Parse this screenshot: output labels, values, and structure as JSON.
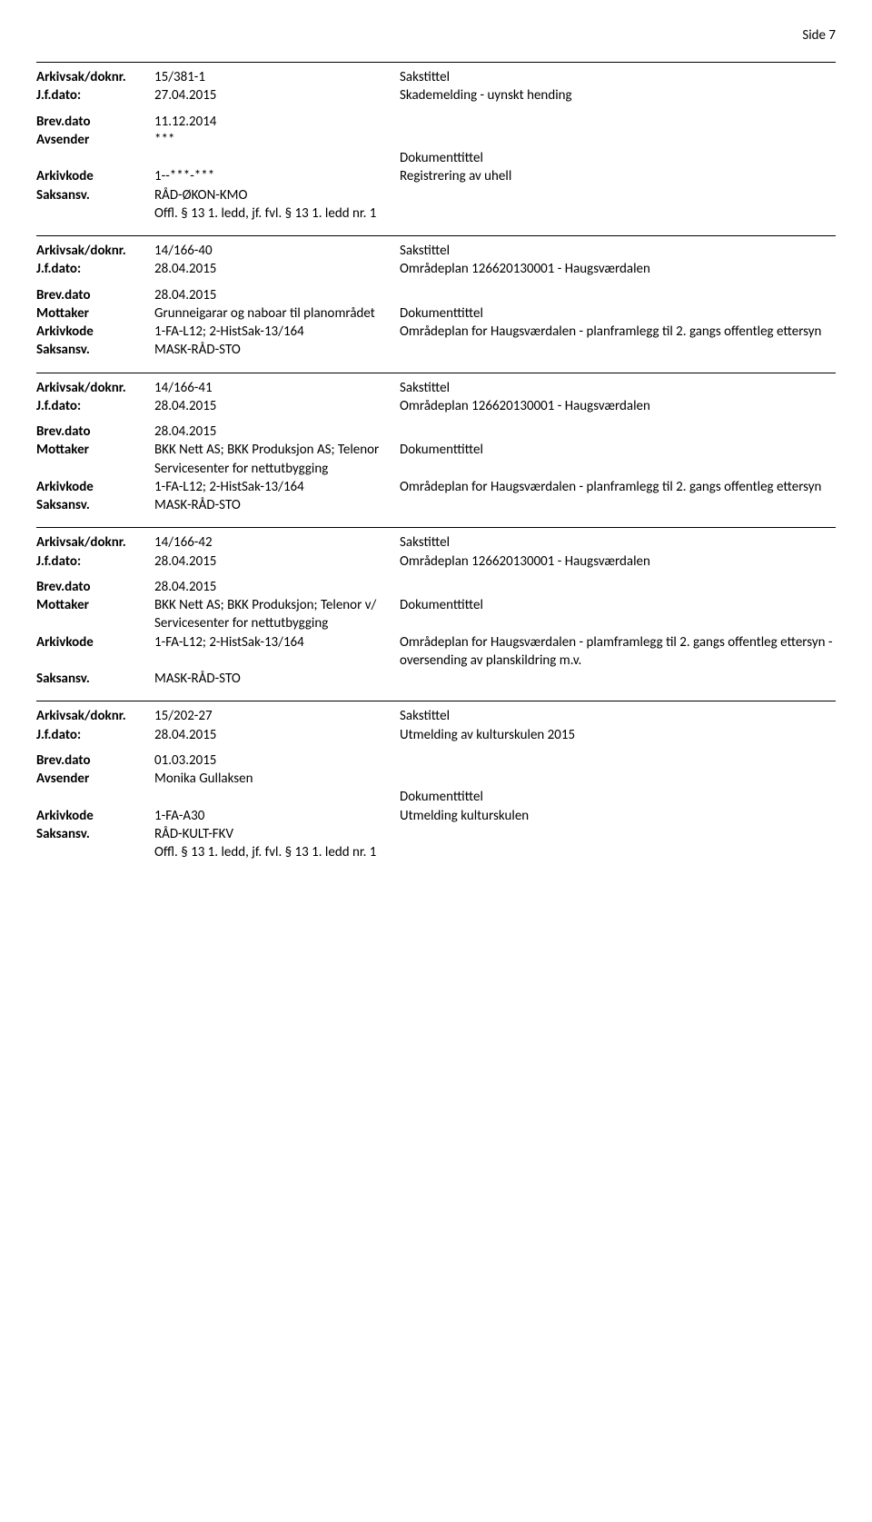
{
  "page_label": "Side 7",
  "blocks": [
    {
      "rows": [
        {
          "label": "Arkivsak/doknr.",
          "col2": "15/381-1",
          "col3": "Sakstittel"
        },
        {
          "label": "J.f.dato:",
          "col2": "27.04.2015",
          "col3": "Skademelding - uynskt hending"
        },
        {
          "spacer": true
        },
        {
          "label": "Brev.dato",
          "col2": "11.12.2014",
          "col3": ""
        },
        {
          "label": "Avsender",
          "col2": "***",
          "col3": ""
        },
        {
          "label": "",
          "col2": "",
          "col3": "Dokumenttittel"
        },
        {
          "label": "Arkivkode",
          "col2": "1--***-***",
          "col3": "Registrering av uhell"
        },
        {
          "label": "Saksansv.",
          "col2": "RÅD-ØKON-KMO",
          "col3": ""
        },
        {
          "label": "",
          "col2": "Offl. § 13 1. ledd, jf. fvl. § 13 1. ledd nr. 1",
          "col3": ""
        }
      ]
    },
    {
      "rows": [
        {
          "label": "Arkivsak/doknr.",
          "col2": "14/166-40",
          "col3": "Sakstittel"
        },
        {
          "label": "J.f.dato:",
          "col2": "28.04.2015",
          "col3": "Områdeplan 126620130001 - Haugsværdalen"
        },
        {
          "spacer": true
        },
        {
          "label": "Brev.dato",
          "col2": "28.04.2015",
          "col3": ""
        },
        {
          "label": "Mottaker",
          "col2": "Grunneigarar og naboar til planområdet",
          "col3": "Dokumenttittel"
        },
        {
          "label": "Arkivkode",
          "col2": "1-FA-L12; 2-HistSak-13/164",
          "col3": "Områdeplan for Haugsværdalen - planframlegg til 2. gangs offentleg ettersyn"
        },
        {
          "label": "Saksansv.",
          "col2": "MASK-RÅD-STO",
          "col3": ""
        }
      ]
    },
    {
      "rows": [
        {
          "label": "Arkivsak/doknr.",
          "col2": "14/166-41",
          "col3": "Sakstittel"
        },
        {
          "label": "J.f.dato:",
          "col2": "28.04.2015",
          "col3": "Områdeplan 126620130001 - Haugsværdalen"
        },
        {
          "spacer": true
        },
        {
          "label": "Brev.dato",
          "col2": "28.04.2015",
          "col3": ""
        },
        {
          "label": "Mottaker",
          "col2": "BKK Nett AS; BKK Produksjon AS; Telenor Servicesenter for nettutbygging",
          "col3": "Dokumenttittel"
        },
        {
          "label": "Arkivkode",
          "col2": "1-FA-L12; 2-HistSak-13/164",
          "col3": "Områdeplan for Haugsværdalen - planframlegg til 2. gangs offentleg ettersyn"
        },
        {
          "label": "Saksansv.",
          "col2": "MASK-RÅD-STO",
          "col3": ""
        }
      ]
    },
    {
      "rows": [
        {
          "label": "Arkivsak/doknr.",
          "col2": "14/166-42",
          "col3": "Sakstittel"
        },
        {
          "label": "J.f.dato:",
          "col2": "28.04.2015",
          "col3": "Områdeplan 126620130001 - Haugsværdalen"
        },
        {
          "spacer": true
        },
        {
          "label": "Brev.dato",
          "col2": "28.04.2015",
          "col3": ""
        },
        {
          "label": "Mottaker",
          "col2": "BKK Nett AS; BKK Produksjon; Telenor v/ Servicesenter for nettutbygging",
          "col3": "Dokumenttittel"
        },
        {
          "label": "Arkivkode",
          "col2": "1-FA-L12; 2-HistSak-13/164",
          "col3": "Områdeplan for Haugsværdalen - plamframlegg til 2. gangs offentleg ettersyn - oversending av planskildring m.v."
        },
        {
          "label": "Saksansv.",
          "col2": "MASK-RÅD-STO",
          "col3": ""
        }
      ]
    },
    {
      "rows": [
        {
          "label": "Arkivsak/doknr.",
          "col2": "15/202-27",
          "col3": "Sakstittel"
        },
        {
          "label": "J.f.dato:",
          "col2": "28.04.2015",
          "col3": "Utmelding av kulturskulen 2015"
        },
        {
          "spacer": true
        },
        {
          "label": "Brev.dato",
          "col2": "01.03.2015",
          "col3": ""
        },
        {
          "label": "Avsender",
          "col2": "Monika Gullaksen",
          "col3": ""
        },
        {
          "label": "",
          "col2": "",
          "col3": "Dokumenttittel"
        },
        {
          "label": "Arkivkode",
          "col2": "1-FA-A30",
          "col3": "Utmelding kulturskulen"
        },
        {
          "label": "Saksansv.",
          "col2": "RÅD-KULT-FKV",
          "col3": ""
        },
        {
          "label": "",
          "col2": "Offl. § 13 1. ledd, jf. fvl. § 13 1. ledd nr. 1",
          "col3": ""
        }
      ]
    }
  ]
}
